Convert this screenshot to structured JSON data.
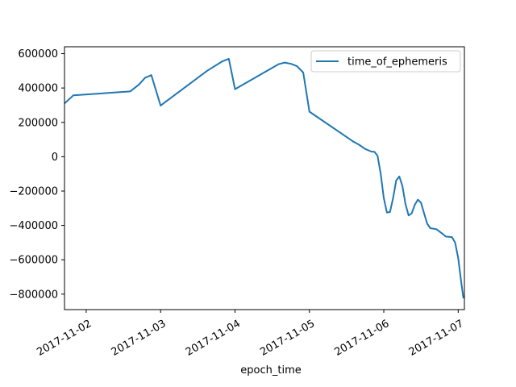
{
  "chart_data": {
    "type": "line",
    "title": "",
    "xlabel": "epoch_time",
    "ylabel": "",
    "legend_position": "upper right",
    "grid": false,
    "xlim": [
      "2017-11-01 17:00",
      "2017-11-07 02:00"
    ],
    "ylim": [
      -890000,
      640000
    ],
    "x_ticks": [
      {
        "value": "2017-11-02 00:00",
        "label": "2017-11-02"
      },
      {
        "value": "2017-11-03 00:00",
        "label": "2017-11-03"
      },
      {
        "value": "2017-11-04 00:00",
        "label": "2017-11-04"
      },
      {
        "value": "2017-11-05 00:00",
        "label": "2017-11-05"
      },
      {
        "value": "2017-11-06 00:00",
        "label": "2017-11-06"
      },
      {
        "value": "2017-11-07 00:00",
        "label": "2017-11-07"
      }
    ],
    "y_ticks": [
      {
        "value": 600000,
        "label": "600000"
      },
      {
        "value": 400000,
        "label": "400000"
      },
      {
        "value": 200000,
        "label": "200000"
      },
      {
        "value": 0,
        "label": "0"
      },
      {
        "value": -200000,
        "label": "−200000"
      },
      {
        "value": -400000,
        "label": "−400000"
      },
      {
        "value": -600000,
        "label": "−600000"
      },
      {
        "value": -800000,
        "label": "−800000"
      }
    ],
    "series": [
      {
        "name": "time_of_ephemeris",
        "color": "#1f77b4",
        "points": [
          {
            "x": "2017-11-01 17:00",
            "y": 310000
          },
          {
            "x": "2017-11-01 19:50",
            "y": 357000
          },
          {
            "x": "2017-11-02 14:10",
            "y": 380000
          },
          {
            "x": "2017-11-02 17:00",
            "y": 420000
          },
          {
            "x": "2017-11-02 19:00",
            "y": 460000
          },
          {
            "x": "2017-11-02 21:00",
            "y": 475000
          },
          {
            "x": "2017-11-03 00:00",
            "y": 298000
          },
          {
            "x": "2017-11-03 15:00",
            "y": 500000
          },
          {
            "x": "2017-11-03 20:00",
            "y": 556000
          },
          {
            "x": "2017-11-03 22:00",
            "y": 570000
          },
          {
            "x": "2017-11-04 00:00",
            "y": 393000
          },
          {
            "x": "2017-11-04 14:00",
            "y": 538000
          },
          {
            "x": "2017-11-04 16:00",
            "y": 548000
          },
          {
            "x": "2017-11-04 18:00",
            "y": 541000
          },
          {
            "x": "2017-11-04 20:00",
            "y": 527000
          },
          {
            "x": "2017-11-04 22:00",
            "y": 490000
          },
          {
            "x": "2017-11-05 00:00",
            "y": 262000
          },
          {
            "x": "2017-11-05 14:00",
            "y": 90000
          },
          {
            "x": "2017-11-05 16:00",
            "y": 70000
          },
          {
            "x": "2017-11-05 18:00",
            "y": 45000
          },
          {
            "x": "2017-11-05 20:00",
            "y": 30000
          },
          {
            "x": "2017-11-05 21:00",
            "y": 28000
          },
          {
            "x": "2017-11-05 22:00",
            "y": 5000
          },
          {
            "x": "2017-11-05 23:00",
            "y": -100000
          },
          {
            "x": "2017-11-06 00:00",
            "y": -240000
          },
          {
            "x": "2017-11-06 01:00",
            "y": -325000
          },
          {
            "x": "2017-11-06 02:00",
            "y": -322000
          },
          {
            "x": "2017-11-06 03:00",
            "y": -240000
          },
          {
            "x": "2017-11-06 04:00",
            "y": -138000
          },
          {
            "x": "2017-11-06 05:00",
            "y": -115000
          },
          {
            "x": "2017-11-06 06:00",
            "y": -170000
          },
          {
            "x": "2017-11-06 07:00",
            "y": -275000
          },
          {
            "x": "2017-11-06 08:00",
            "y": -342000
          },
          {
            "x": "2017-11-06 09:00",
            "y": -330000
          },
          {
            "x": "2017-11-06 10:00",
            "y": -280000
          },
          {
            "x": "2017-11-06 11:00",
            "y": -250000
          },
          {
            "x": "2017-11-06 12:00",
            "y": -268000
          },
          {
            "x": "2017-11-06 13:00",
            "y": -330000
          },
          {
            "x": "2017-11-06 14:00",
            "y": -390000
          },
          {
            "x": "2017-11-06 15:00",
            "y": -416000
          },
          {
            "x": "2017-11-06 17:00",
            "y": -422000
          },
          {
            "x": "2017-11-06 19:00",
            "y": -450000
          },
          {
            "x": "2017-11-06 20:00",
            "y": -465000
          },
          {
            "x": "2017-11-06 22:00",
            "y": -468000
          },
          {
            "x": "2017-11-06 23:00",
            "y": -500000
          },
          {
            "x": "2017-11-07 00:00",
            "y": -590000
          },
          {
            "x": "2017-11-07 01:00",
            "y": -735000
          },
          {
            "x": "2017-11-07 01:40",
            "y": -820000
          },
          {
            "x": "2017-11-07 02:00",
            "y": -820000
          }
        ]
      }
    ]
  }
}
